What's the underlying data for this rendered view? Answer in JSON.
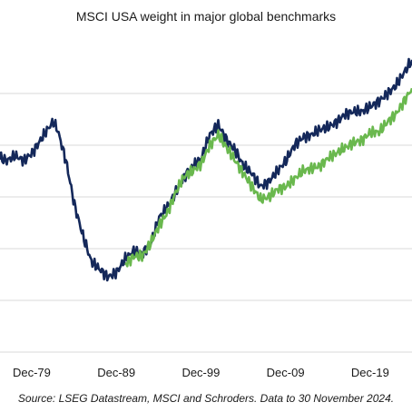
{
  "chart_data": {
    "type": "line",
    "title": "MSCI USA weight in major global benchmarks",
    "source": "Source: LSEG Datastream, MSCI and Schroders. Data to 30 November 2024.",
    "xlabel": "",
    "ylabel": "",
    "x_ticks": [
      "Dec-79",
      "Dec-89",
      "Dec-99",
      "Dec-09",
      "Dec-19"
    ],
    "xlim": [
      1976.2,
      2024.9
    ],
    "ylim": [
      20,
      80
    ],
    "grid": true,
    "legend": "none",
    "series": [
      {
        "color": "#14285a",
        "x": [
          1976.2,
          1977.0,
          1978.0,
          1979.0,
          1980.0,
          1981.0,
          1982.0,
          1982.5,
          1983.0,
          1984.0,
          1985.0,
          1986.0,
          1987.0,
          1988.0,
          1989.0,
          1990.0,
          1991.0,
          1992.0,
          1993.0,
          1994.0,
          1995.0,
          1996.0,
          1997.0,
          1998.0,
          1999.0,
          2000.0,
          2001.0,
          2002.0,
          2003.0,
          2004.0,
          2005.0,
          2006.0,
          2007.0,
          2008.0,
          2009.0,
          2010.0,
          2011.0,
          2012.0,
          2013.0,
          2014.0,
          2015.0,
          2016.0,
          2017.0,
          2018.0,
          2019.0,
          2020.0,
          2021.0,
          2022.0,
          2023.0,
          2024.9
        ],
        "values": [
          57.5,
          57.0,
          58.0,
          57.0,
          58.5,
          61.0,
          63.5,
          64.5,
          63.0,
          57.0,
          48.5,
          42.5,
          37.5,
          36.0,
          34.5,
          35.5,
          38.0,
          39.5,
          39.0,
          41.0,
          46.0,
          48.0,
          51.0,
          54.0,
          56.0,
          57.5,
          62.0,
          64.0,
          61.0,
          59.0,
          56.0,
          54.5,
          52.0,
          53.0,
          55.0,
          57.0,
          60.0,
          61.5,
          62.0,
          63.0,
          63.5,
          64.5,
          66.0,
          66.5,
          66.5,
          67.5,
          68.5,
          70.0,
          71.5,
          76.5
        ]
      },
      {
        "color": "#6ab84e",
        "x": [
          1991.0,
          1992.0,
          1993.0,
          1994.0,
          1995.0,
          1996.0,
          1997.0,
          1998.0,
          1999.0,
          2000.0,
          2001.0,
          2002.0,
          2003.0,
          2004.0,
          2005.0,
          2006.0,
          2007.0,
          2008.0,
          2009.0,
          2010.0,
          2011.0,
          2012.0,
          2013.0,
          2014.0,
          2015.0,
          2016.0,
          2017.0,
          2018.0,
          2019.0,
          2020.0,
          2021.0,
          2022.0,
          2023.0,
          2024.9
        ],
        "values": [
          37.0,
          38.5,
          38.5,
          41.0,
          44.5,
          47.0,
          51.0,
          54.0,
          55.0,
          56.5,
          60.0,
          62.0,
          59.5,
          57.0,
          54.5,
          52.0,
          49.5,
          50.0,
          51.5,
          52.0,
          53.5,
          55.0,
          55.5,
          56.0,
          57.5,
          58.5,
          59.5,
          60.5,
          61.0,
          62.5,
          62.5,
          64.5,
          66.0,
          71.0
        ]
      }
    ]
  }
}
